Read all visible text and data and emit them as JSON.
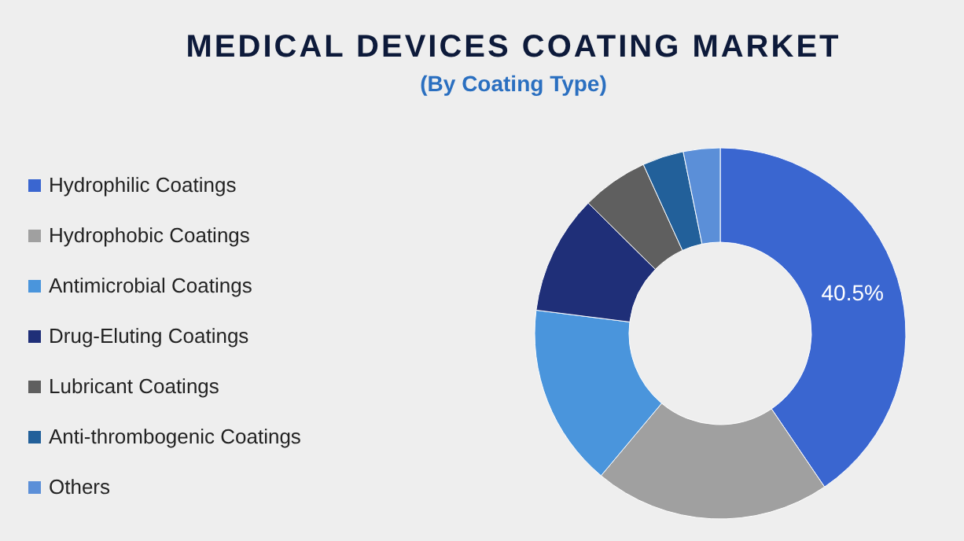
{
  "chart_data": {
    "type": "donut",
    "title": "MEDICAL DEVICES COATING MARKET",
    "subtitle": "(By Coating Type)",
    "categories": [
      "Hydrophilic Coatings",
      "Hydrophobic Coatings",
      "Antimicrobial Coatings",
      "Drug-Eluting Coatings",
      "Lubricant Coatings",
      "Anti-thrombogenic Coatings",
      "Others"
    ],
    "values": [
      40.5,
      20.6,
      15.9,
      10.4,
      5.8,
      3.6,
      3.2
    ],
    "colors": [
      "#3a66d0",
      "#a0a0a0",
      "#4a95dc",
      "#1f2f78",
      "#5f5f5f",
      "#22609a",
      "#5b8fd8"
    ],
    "value_labels": [
      "40.5%",
      null,
      null,
      null,
      null,
      null,
      null
    ],
    "legend": "left"
  }
}
